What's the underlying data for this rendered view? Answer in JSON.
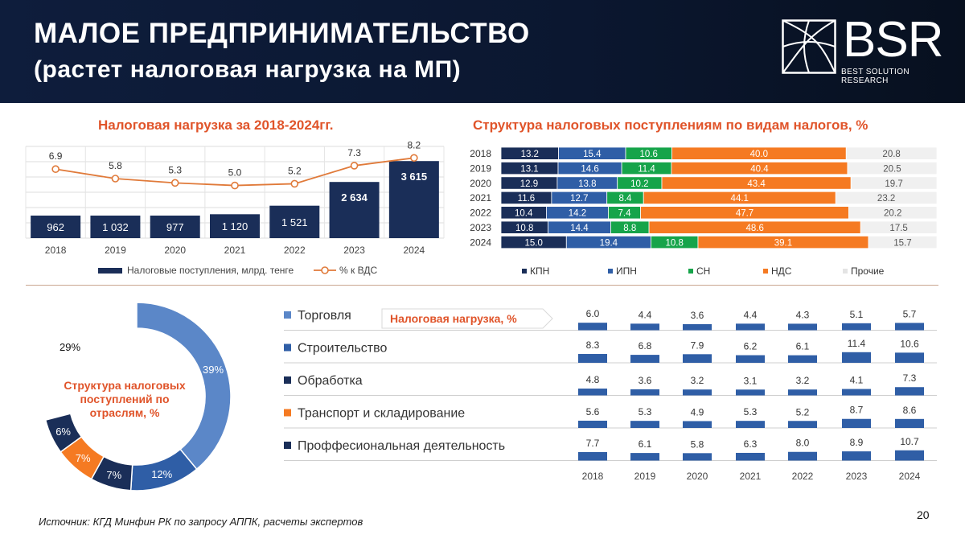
{
  "header": {
    "title_line1": "МАЛОЕ ПРЕДПРИНИМАТЕЛЬСТВО",
    "title_line2": "(растет налоговая нагрузка на МП)",
    "logo_text": "BSR",
    "logo_subtext": "BEST SOLUTION RESEARCH"
  },
  "footer": {
    "source": "Источник: КГД Минфин РК по запросу АППК, расчеты экспертов",
    "page_number": "20"
  },
  "colors": {
    "navy": "#1a2e58",
    "blue": "#2f5ea6",
    "green": "#16a44a",
    "orange": "#f57a22",
    "grey": "#f0f0f0",
    "accent": "#e0542a",
    "donut_light": "#5b87c8",
    "donut_mid": "#2f5ea6",
    "donut_dark": "#1a2e58"
  },
  "chart_data": [
    {
      "type": "bar",
      "title": "Налоговая нагрузка за 2018-2024гг.",
      "categories": [
        "2018",
        "2019",
        "2020",
        "2021",
        "2022",
        "2023",
        "2024"
      ],
      "series": [
        {
          "name": "Налоговые поступления, млрд. тенге",
          "kind": "bar",
          "values": [
            962,
            1032,
            977,
            1120,
            1521,
            2634,
            3615
          ],
          "labels": [
            "962",
            "1 032",
            "977",
            "1 120",
            "1 521",
            "2 634",
            "3 615"
          ]
        },
        {
          "name": "% к ВДС",
          "kind": "line",
          "values": [
            6.9,
            5.8,
            5.3,
            5.0,
            5.2,
            7.3,
            8.2
          ],
          "labels": [
            "6.9",
            "5.8",
            "5.3",
            "5.0",
            "5.2",
            "7.3",
            "8.2"
          ]
        }
      ],
      "legend": "bottom",
      "grid": true
    },
    {
      "type": "bar",
      "stacked": true,
      "orientation": "horizontal",
      "title": "Структура налоговых поступлениям по видам налогов, %",
      "categories": [
        "2018",
        "2019",
        "2020",
        "2021",
        "2022",
        "2023",
        "2024"
      ],
      "series": [
        {
          "name": "КПН",
          "values": [
            13.2,
            13.1,
            12.9,
            11.6,
            10.4,
            10.8,
            15.0
          ],
          "labels": [
            "13.2",
            "13.1",
            "12.9",
            "11.6",
            "10.4",
            "10.8",
            "15.0"
          ]
        },
        {
          "name": "ИПН",
          "values": [
            15.4,
            14.6,
            13.8,
            12.7,
            14.2,
            14.4,
            19.4
          ],
          "labels": [
            "15.4",
            "14.6",
            "13.8",
            "12.7",
            "14.2",
            "14.4",
            "19.4"
          ]
        },
        {
          "name": "СН",
          "values": [
            10.6,
            11.4,
            10.2,
            8.4,
            7.4,
            8.8,
            10.8
          ],
          "labels": [
            "10.6",
            "11.4",
            "10.2",
            "8.4",
            "7.4",
            "8.8",
            "10.8"
          ]
        },
        {
          "name": "НДС",
          "values": [
            40.0,
            40.4,
            43.4,
            44.1,
            47.7,
            48.6,
            39.1
          ],
          "labels": [
            "40.0",
            "40.4",
            "43.4",
            "44.1",
            "47.7",
            "48.6",
            "39.1"
          ]
        },
        {
          "name": "Прочие",
          "values": [
            20.8,
            20.5,
            19.7,
            23.2,
            20.2,
            17.5,
            15.7
          ],
          "labels": [
            "20.8",
            "20.5",
            "19.7",
            "23.2",
            "20.2",
            "17.5",
            "15.7"
          ]
        }
      ],
      "legend": "bottom"
    },
    {
      "type": "pie",
      "donut": true,
      "title": "Структура налоговых поступлений по отраслям, %",
      "slices": [
        {
          "name": "Торговля",
          "value": 39,
          "label": "39%"
        },
        {
          "name": "Строительство",
          "value": 12,
          "label": "12%"
        },
        {
          "name": "Обработка",
          "value": 7,
          "label": "7%"
        },
        {
          "name": "Транспорт и складирование",
          "value": 7,
          "label": "7%"
        },
        {
          "name": "Проффесиональная деятельность",
          "value": 6,
          "label": "6%"
        },
        {
          "name": "",
          "value": 29,
          "label": "29%"
        }
      ]
    },
    {
      "type": "bar",
      "small_multiples": true,
      "title": "Налоговая нагрузка, %",
      "categories": [
        "2018",
        "2019",
        "2020",
        "2021",
        "2022",
        "2023",
        "2024"
      ],
      "series": [
        {
          "name": "Торговля",
          "values": [
            6.0,
            4.4,
            3.6,
            4.4,
            4.3,
            5.1,
            5.7
          ],
          "labels": [
            "6.0",
            "4.4",
            "3.6",
            "4.4",
            "4.3",
            "5.1",
            "5.7"
          ]
        },
        {
          "name": "Строительство",
          "values": [
            8.3,
            6.8,
            7.9,
            6.2,
            6.1,
            11.4,
            10.6
          ],
          "labels": [
            "8.3",
            "6.8",
            "7.9",
            "6.2",
            "6.1",
            "11.4",
            "10.6"
          ]
        },
        {
          "name": "Обработка",
          "values": [
            4.8,
            3.6,
            3.2,
            3.1,
            3.2,
            4.1,
            7.3
          ],
          "labels": [
            "4.8",
            "3.6",
            "3.2",
            "3.1",
            "3.2",
            "4.1",
            "7.3"
          ]
        },
        {
          "name": "Транспорт и складирование",
          "values": [
            5.6,
            5.3,
            4.9,
            5.3,
            5.2,
            8.7,
            8.6
          ],
          "labels": [
            "5.6",
            "5.3",
            "4.9",
            "5.3",
            "5.2",
            "8.7",
            "8.6"
          ]
        },
        {
          "name": "Проффесиональная деятельность",
          "values": [
            7.7,
            6.1,
            5.8,
            6.3,
            8.0,
            8.9,
            10.7
          ],
          "labels": [
            "7.7",
            "6.1",
            "5.8",
            "6.3",
            "8.0",
            "8.9",
            "10.7"
          ]
        }
      ]
    }
  ]
}
